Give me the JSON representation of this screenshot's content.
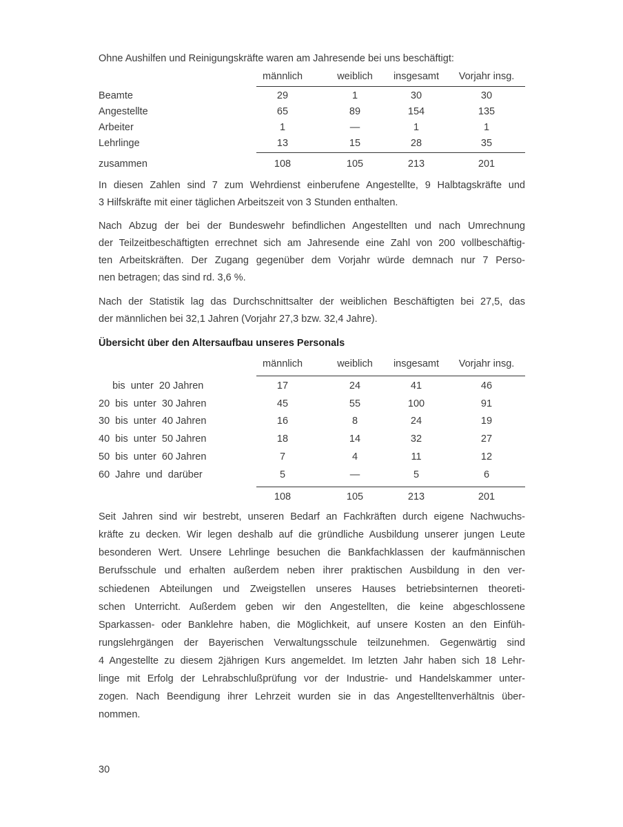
{
  "intro": "Ohne Aushilfen und Reinigungskräfte waren am Jahresende bei uns beschäftigt:",
  "table1": {
    "headers": [
      "männlich",
      "weiblich",
      "insgesamt",
      "Vorjahr insg."
    ],
    "rows": [
      {
        "label": "Beamte",
        "values": [
          "29",
          "1",
          "30",
          "30"
        ]
      },
      {
        "label": "Angestellte",
        "values": [
          "65",
          "89",
          "154",
          "135"
        ]
      },
      {
        "label": "Arbeiter",
        "values": [
          "1",
          "—",
          "1",
          "1"
        ]
      },
      {
        "label": "Lehrlinge",
        "values": [
          "13",
          "15",
          "28",
          "35"
        ]
      }
    ],
    "total": {
      "label": "zusammen",
      "values": [
        "108",
        "105",
        "213",
        "201"
      ]
    }
  },
  "para1": [
    "In diesen Zahlen sind 7 zum Wehrdienst einberufene Angestellte, 9 Halbtagskräfte und",
    "3 Hilfskräfte mit einer täglichen Arbeitszeit von 3 Stunden enthalten."
  ],
  "para2": [
    "Nach Abzug der bei der Bundeswehr befindlichen Angestellten und nach Umrechnung",
    "der Teilzeitbeschäftigten errechnet sich am Jahresende eine Zahl von 200 vollbeschäftig-",
    "ten Arbeitskräften. Der Zugang gegenüber dem Vorjahr würde demnach nur 7 Perso-",
    "nen betragen; das sind rd. 3,6 %."
  ],
  "para3": [
    "Nach der Statistik lag das Durchschnittsalter der weiblichen Beschäftigten bei 27,5, das",
    "der männlichen bei 32,1 Jahren (Vorjahr 27,3 bzw. 32,4 Jahre)."
  ],
  "heading2": "Übersicht über den Altersaufbau unseres Personals",
  "table2": {
    "headers": [
      "männlich",
      "weiblich",
      "insgesamt",
      "Vorjahr insg."
    ],
    "rows": [
      {
        "label": "     bis  unter  20 Jahren",
        "values": [
          "17",
          "24",
          "41",
          "46"
        ]
      },
      {
        "label": "20  bis  unter  30 Jahren",
        "values": [
          "45",
          "55",
          "100",
          "91"
        ]
      },
      {
        "label": "30  bis  unter  40 Jahren",
        "values": [
          "16",
          "8",
          "24",
          "19"
        ]
      },
      {
        "label": "40  bis  unter  50 Jahren",
        "values": [
          "18",
          "14",
          "32",
          "27"
        ]
      },
      {
        "label": "50  bis  unter  60 Jahren",
        "values": [
          "7",
          "4",
          "11",
          "12"
        ]
      },
      {
        "label": "60  Jahre  und  darüber",
        "values": [
          "5",
          "—",
          "5",
          "6"
        ]
      }
    ],
    "total": {
      "values": [
        "108",
        "105",
        "213",
        "201"
      ]
    }
  },
  "para4": [
    "Seit Jahren sind wir bestrebt, unseren Bedarf an Fachkräften durch eigene Nachwuchs-",
    "kräfte zu decken. Wir legen deshalb auf die gründliche Ausbildung unserer jungen Leute",
    "besonderen Wert. Unsere Lehrlinge besuchen die Bankfachklassen der kaufmännischen",
    "Berufsschule und erhalten außerdem neben ihrer praktischen Ausbildung in den ver-",
    "schiedenen Abteilungen und Zweigstellen unseres Hauses betriebsinternen theoreti-",
    "schen Unterricht. Außerdem geben wir den Angestellten, die keine abgeschlossene",
    "Sparkassen- oder Banklehre haben, die Möglichkeit, auf unsere Kosten an den Einfüh-",
    "rungslehrgängen der Bayerischen Verwaltungsschule teilzunehmen. Gegenwärtig sind",
    "4 Angestellte zu diesem 2jährigen Kurs angemeldet. Im letzten Jahr haben sich 18 Lehr-",
    "linge mit Erfolg der Lehrabschlußprüfung vor der Industrie- und Handelskammer unter-",
    "zogen. Nach Beendigung ihrer Lehrzeit wurden sie in das Angestelltenverhältnis über-",
    "nommen."
  ],
  "page_number": "30"
}
